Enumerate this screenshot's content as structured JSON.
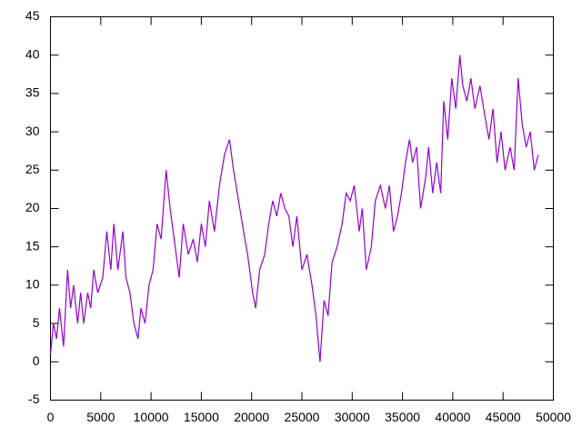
{
  "chart_data": {
    "type": "line",
    "x": [
      0,
      300,
      600,
      900,
      1300,
      1700,
      2000,
      2300,
      2700,
      3000,
      3300,
      3700,
      4000,
      4300,
      4700,
      5200,
      5600,
      6000,
      6300,
      6700,
      7200,
      7500,
      7900,
      8300,
      8700,
      9000,
      9400,
      9800,
      10200,
      10600,
      11000,
      11500,
      11900,
      12300,
      12800,
      13200,
      13700,
      14200,
      14600,
      15000,
      15400,
      15800,
      16300,
      16800,
      17300,
      17800,
      18200,
      18700,
      19200,
      19600,
      20100,
      20400,
      20800,
      21300,
      21700,
      22100,
      22500,
      22900,
      23300,
      23700,
      24100,
      24500,
      25000,
      25500,
      26000,
      26400,
      26800,
      27200,
      27600,
      28000,
      28500,
      29000,
      29400,
      29800,
      30200,
      30700,
      31000,
      31400,
      31900,
      32300,
      32800,
      33300,
      33700,
      34100,
      34500,
      34900,
      35300,
      35700,
      36000,
      36400,
      36800,
      37300,
      37600,
      38000,
      38400,
      38800,
      39100,
      39500,
      39900,
      40300,
      40700,
      41000,
      41400,
      41800,
      42200,
      42700,
      43200,
      43600,
      44000,
      44400,
      44800,
      45200,
      45700,
      46100,
      46500,
      46900,
      47300,
      47700,
      48100,
      48500
    ],
    "series": [
      {
        "color": "#9400d3",
        "values": [
          1,
          5,
          3,
          7,
          2,
          12,
          7,
          10,
          5,
          9,
          5,
          9,
          7,
          12,
          9,
          11,
          17,
          12,
          18,
          12,
          17,
          11,
          9,
          5,
          3,
          7,
          5,
          10,
          12,
          18,
          16,
          25,
          20,
          16,
          11,
          18,
          14,
          16,
          13,
          18,
          15,
          21,
          17,
          23,
          27,
          29,
          25,
          21,
          17,
          14,
          9,
          7,
          12,
          14,
          18,
          21,
          19,
          22,
          20,
          19,
          15,
          19,
          12,
          14,
          10,
          6,
          0,
          8,
          6,
          13,
          15,
          18,
          22,
          21,
          23,
          17,
          20,
          12,
          15,
          21,
          23,
          20,
          23,
          17,
          19,
          22,
          26,
          29,
          26,
          28,
          20,
          24,
          28,
          22,
          26,
          22,
          34,
          29,
          37,
          33,
          40,
          36,
          34,
          37,
          33,
          36,
          32,
          29,
          33,
          26,
          30,
          25,
          28,
          25,
          37,
          31,
          28,
          30,
          25,
          27
        ]
      }
    ],
    "xlim": [
      0,
      50000
    ],
    "xticks": [
      0,
      5000,
      10000,
      15000,
      20000,
      25000,
      30000,
      35000,
      40000,
      45000,
      50000
    ],
    "ylim": [
      -5,
      45
    ],
    "yticks": [
      -5,
      0,
      5,
      10,
      15,
      20,
      25,
      30,
      35,
      40,
      45
    ]
  }
}
